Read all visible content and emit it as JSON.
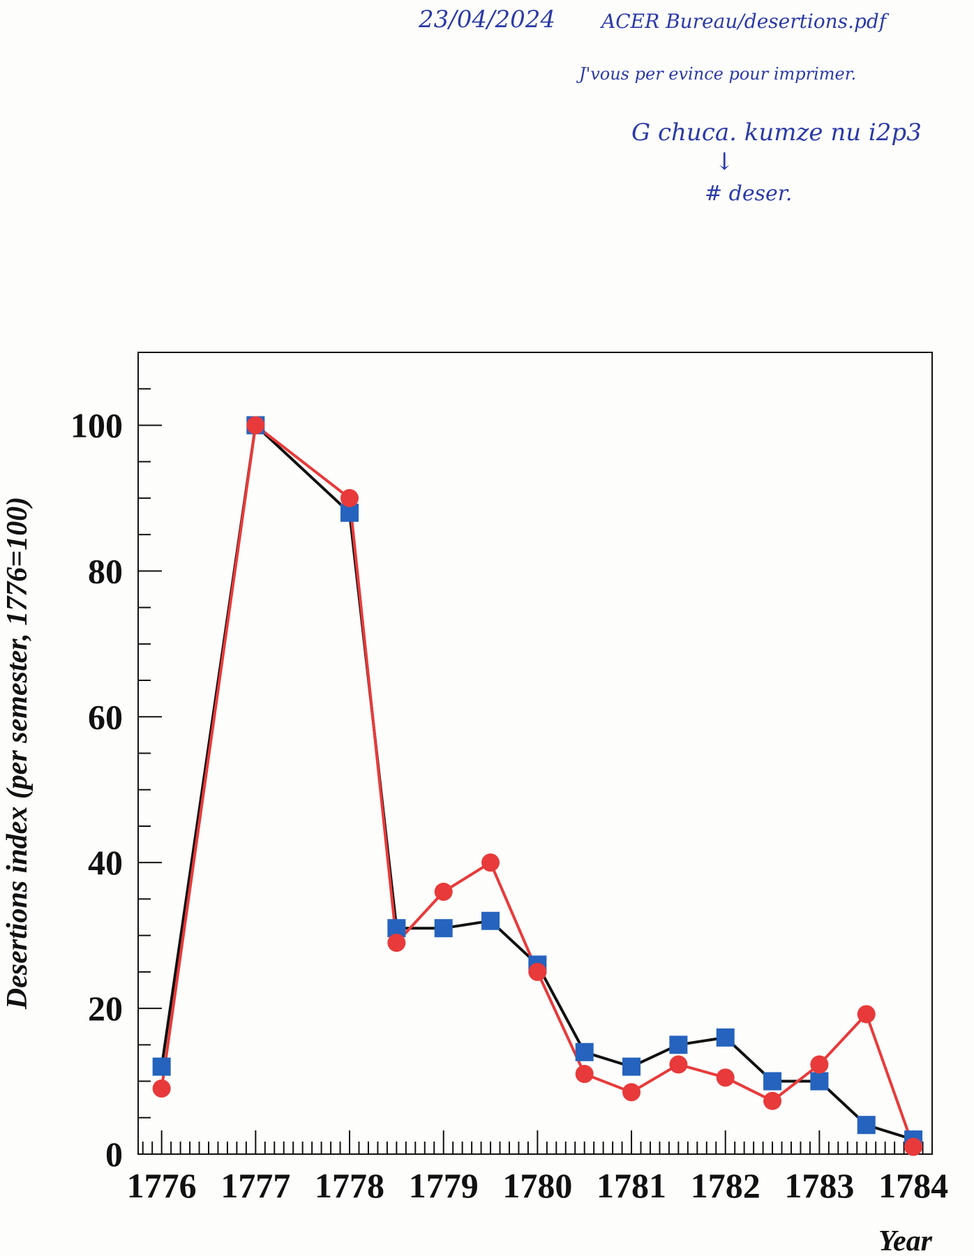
{
  "annotations": {
    "line1_date": "23/04/2024",
    "line1_path": "ACER Bureau/desertions.pdf",
    "line2": "J'vous per evince pour imprimer.",
    "line3": "G chuca. kumze nu i2p3",
    "line4_arrow": "↓",
    "line5": "# deser."
  },
  "chart_data": {
    "type": "line",
    "title": "",
    "xlabel": "Year",
    "ylabel": "Desertions index (per semester, 1776=100)",
    "xlim": [
      1775.75,
      1784.2
    ],
    "ylim": [
      0,
      110
    ],
    "x_ticks": [
      1776,
      1777,
      1778,
      1779,
      1780,
      1781,
      1782,
      1783,
      1784
    ],
    "y_ticks": [
      0,
      20,
      40,
      60,
      80,
      100
    ],
    "grid": false,
    "colors": {
      "series1_line": "#111111",
      "series1_marker": "#2563be",
      "series2_line": "#e83a3a",
      "series2_marker": "#e83a3a"
    },
    "series": [
      {
        "marker": "square",
        "x": [
          1776,
          1777,
          1778,
          1778.5,
          1779,
          1779.5,
          1780,
          1780.5,
          1781,
          1781.5,
          1782,
          1782.5,
          1783,
          1783.5,
          1784
        ],
        "values": [
          12,
          100,
          88,
          31,
          31,
          32,
          26,
          14,
          12,
          15,
          16,
          10,
          10,
          4,
          2
        ]
      },
      {
        "marker": "circle",
        "x": [
          1776,
          1777,
          1778,
          1778.5,
          1779,
          1779.5,
          1780,
          1780.5,
          1781,
          1781.5,
          1782,
          1782.5,
          1783,
          1783.5,
          1784
        ],
        "values": [
          9,
          100,
          90,
          29,
          36,
          40,
          25,
          11,
          8.5,
          12.3,
          10.5,
          7.3,
          12.3,
          19.2,
          1
        ]
      }
    ]
  }
}
